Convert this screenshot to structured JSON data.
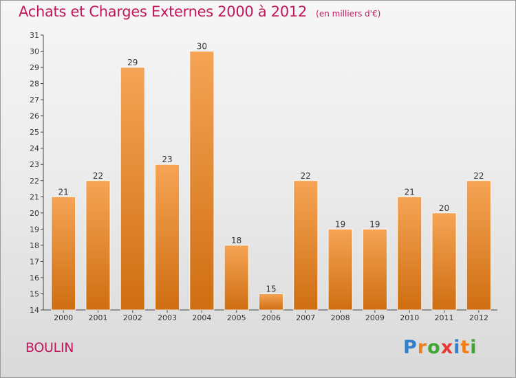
{
  "title": "Achats et Charges Externes 2000 à 2012",
  "subtitle": "(en milliers d'€)",
  "commune": "BOULIN",
  "logo": {
    "text": "Proxiti",
    "letter_colors": [
      "#2e7fd0",
      "#f07f1a",
      "#3fa535",
      "#e53935",
      "#2e7fd0",
      "#f07f1a",
      "#3fa535"
    ]
  },
  "colors": {
    "bar_top": "#f5a455",
    "bar_bottom": "#cf6e12",
    "bar_edge": "#ffffff",
    "title": "#c2185b"
  },
  "chart_data": {
    "type": "bar",
    "categories": [
      "2000",
      "2001",
      "2002",
      "2003",
      "2004",
      "2005",
      "2006",
      "2007",
      "2008",
      "2009",
      "2010",
      "2011",
      "2012"
    ],
    "values": [
      21,
      22,
      29,
      23,
      30,
      18,
      15,
      22,
      19,
      19,
      21,
      20,
      22
    ],
    "title": "Achats et Charges Externes 2000 à 2012",
    "ylim": [
      14,
      31
    ],
    "yticks": [
      14,
      15,
      16,
      17,
      18,
      19,
      20,
      21,
      22,
      23,
      24,
      25,
      26,
      27,
      28,
      29,
      30,
      31
    ],
    "grid": false,
    "data_labels": true
  }
}
